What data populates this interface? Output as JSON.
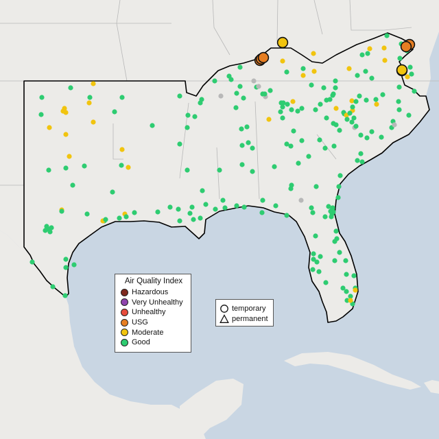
{
  "legend": {
    "title": "Air Quality Index",
    "categories": [
      {
        "label": "Hazardous",
        "color": "#7e2a1e"
      },
      {
        "label": "Very Unhealthy",
        "color": "#8e44ad"
      },
      {
        "label": "Unhealthy",
        "color": "#e74c3c"
      },
      {
        "label": "USG",
        "color": "#e67e22"
      },
      {
        "label": "Moderate",
        "color": "#f1c40f"
      },
      {
        "label": "Good",
        "color": "#2ecc71"
      }
    ],
    "no_data_color": "#b8b8b8"
  },
  "monitor_type_legend": {
    "items": [
      {
        "label": "temporary",
        "icon": "circle-outline-icon"
      },
      {
        "label": "permanent",
        "icon": "triangle-outline-icon"
      }
    ]
  },
  "map_colors": {
    "water": "#c9d6e3",
    "land": "#ecebe8",
    "region_outline": "#000000",
    "state_border": "#b8b8b8"
  }
}
